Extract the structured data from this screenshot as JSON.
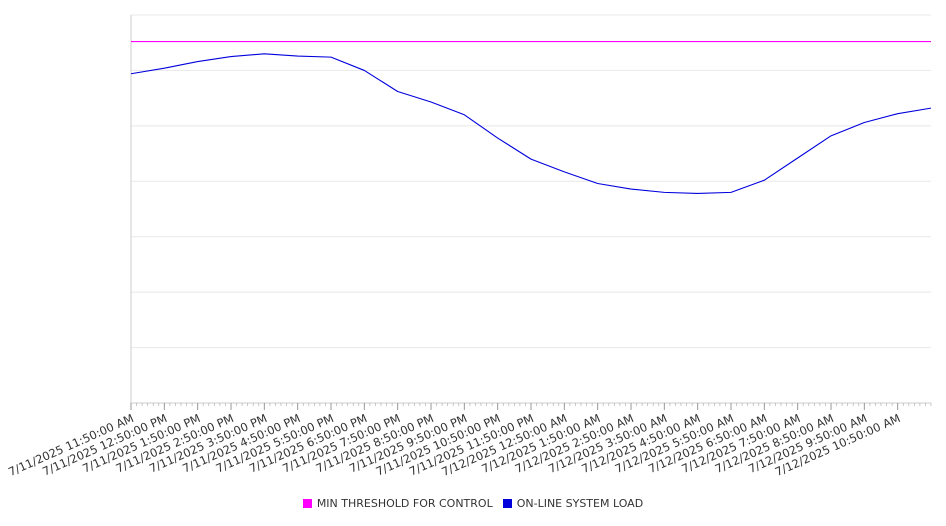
{
  "chart_data": {
    "type": "line",
    "title": "",
    "xlabel": "",
    "ylabel": "",
    "y_tick_labels_shown": false,
    "grid": "horizontal",
    "legend_position": "bottom-center",
    "ylim": [
      0,
      7
    ],
    "x_range": [
      "7/11/2025 11:50:00 AM",
      "7/12/2025 11:50:00 AM"
    ],
    "x_tick_labels": [
      "7/11/2025 11:50:00 AM",
      "7/11/2025 12:50:00 PM",
      "7/11/2025 1:50:00 PM",
      "7/11/2025 2:50:00 PM",
      "7/11/2025 3:50:00 PM",
      "7/11/2025 4:50:00 PM",
      "7/11/2025 5:50:00 PM",
      "7/11/2025 6:50:00 PM",
      "7/11/2025 7:50:00 PM",
      "7/11/2025 8:50:00 PM",
      "7/11/2025 9:50:00 PM",
      "7/11/2025 10:50:00 PM",
      "7/11/2025 11:50:00 PM",
      "7/12/2025 12:50:00 AM",
      "7/12/2025 1:50:00 AM",
      "7/12/2025 2:50:00 AM",
      "7/12/2025 3:50:00 AM",
      "7/12/2025 4:50:00 AM",
      "7/12/2025 5:50:00 AM",
      "7/12/2025 6:50:00 AM",
      "7/12/2025 7:50:00 AM",
      "7/12/2025 8:50:00 AM",
      "7/12/2025 9:50:00 AM",
      "7/12/2025 10:50:00 AM"
    ],
    "series": [
      {
        "name": "MIN THRESHOLD FOR CONTROL",
        "color": "#ff00ff",
        "x": [
          "7/11/2025 11:50:00 AM",
          "7/12/2025 11:50:00 AM"
        ],
        "values": [
          6.52,
          6.52
        ]
      },
      {
        "name": "ON-LINE SYSTEM LOAD",
        "color": "#0000dd",
        "x": [
          "7/11/2025 11:50:00 AM",
          "7/11/2025 12:50:00 PM",
          "7/11/2025 1:50:00 PM",
          "7/11/2025 2:50:00 PM",
          "7/11/2025 3:50:00 PM",
          "7/11/2025 4:50:00 PM",
          "7/11/2025 5:50:00 PM",
          "7/11/2025 6:50:00 PM",
          "7/11/2025 7:50:00 PM",
          "7/11/2025 8:50:00 PM",
          "7/11/2025 9:50:00 PM",
          "7/11/2025 10:50:00 PM",
          "7/11/2025 11:50:00 PM",
          "7/12/2025 12:50:00 AM",
          "7/12/2025 1:50:00 AM",
          "7/12/2025 2:50:00 AM",
          "7/12/2025 3:50:00 AM",
          "7/12/2025 4:50:00 AM",
          "7/12/2025 5:50:00 AM",
          "7/12/2025 6:50:00 AM",
          "7/12/2025 7:50:00 AM",
          "7/12/2025 8:50:00 AM",
          "7/12/2025 9:50:00 AM",
          "7/12/2025 10:50:00 AM",
          "7/12/2025 11:50:00 AM"
        ],
        "values": [
          5.94,
          6.04,
          6.16,
          6.25,
          6.3,
          6.26,
          6.24,
          6.0,
          5.62,
          5.43,
          5.2,
          4.78,
          4.4,
          4.17,
          3.96,
          3.86,
          3.8,
          3.78,
          3.8,
          4.02,
          4.42,
          4.82,
          5.06,
          5.22,
          5.32
        ]
      }
    ]
  }
}
